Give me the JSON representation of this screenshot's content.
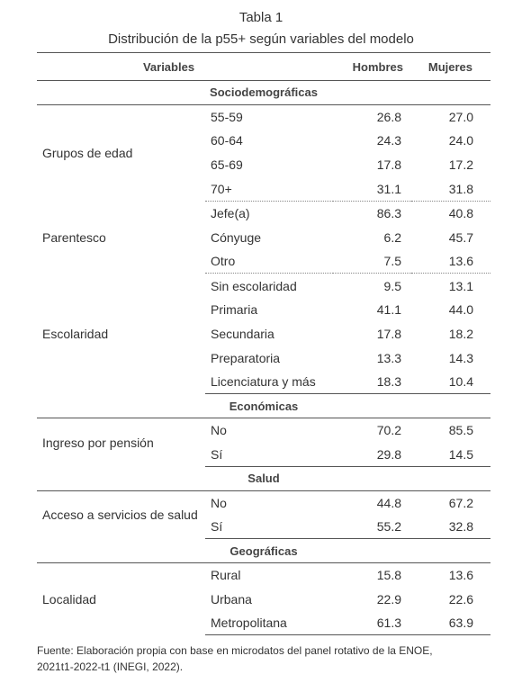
{
  "title_line1": "Tabla 1",
  "title_line2": "Distribución de la p55+ según variables del modelo",
  "headers": {
    "variables": "Variables",
    "hombres": "Hombres",
    "mujeres": "Mujeres"
  },
  "sections": [
    {
      "name": "Sociodemográficas",
      "groups": [
        {
          "variable": "Grupos de edad",
          "rows": [
            {
              "cat": "55-59",
              "h": "26.8",
              "m": "27.0"
            },
            {
              "cat": "60-64",
              "h": "24.3",
              "m": "24.0"
            },
            {
              "cat": "65-69",
              "h": "17.8",
              "m": "17.2"
            },
            {
              "cat": "70+",
              "h": "31.1",
              "m": "31.8"
            }
          ]
        },
        {
          "variable": "Parentesco",
          "rows": [
            {
              "cat": "Jefe(a)",
              "h": "86.3",
              "m": "40.8"
            },
            {
              "cat": "Cónyuge",
              "h": "6.2",
              "m": "45.7"
            },
            {
              "cat": "Otro",
              "h": "7.5",
              "m": "13.6"
            }
          ]
        },
        {
          "variable": "Escolaridad",
          "rows": [
            {
              "cat": "Sin escolaridad",
              "h": "9.5",
              "m": "13.1"
            },
            {
              "cat": "Primaria",
              "h": "41.1",
              "m": "44.0"
            },
            {
              "cat": "Secundaria",
              "h": "17.8",
              "m": "18.2"
            },
            {
              "cat": "Preparatoria",
              "h": "13.3",
              "m": "14.3"
            },
            {
              "cat": "Licenciatura y más",
              "h": "18.3",
              "m": "10.4"
            }
          ]
        }
      ]
    },
    {
      "name": "Económicas",
      "groups": [
        {
          "variable": "Ingreso por pensión",
          "rows": [
            {
              "cat": "No",
              "h": "70.2",
              "m": "85.5"
            },
            {
              "cat": "Sí",
              "h": "29.8",
              "m": "14.5"
            }
          ]
        }
      ]
    },
    {
      "name": "Salud",
      "groups": [
        {
          "variable": "Acceso a servicios de salud",
          "rows": [
            {
              "cat": "No",
              "h": "44.8",
              "m": "67.2"
            },
            {
              "cat": "Sí",
              "h": "55.2",
              "m": "32.8"
            }
          ]
        }
      ]
    },
    {
      "name": "Geográficas",
      "groups": [
        {
          "variable": "Localidad",
          "rows": [
            {
              "cat": "Rural",
              "h": "15.8",
              "m": "13.6"
            },
            {
              "cat": "Urbana",
              "h": "22.9",
              "m": "22.6"
            },
            {
              "cat": "Metropolitana",
              "h": "61.3",
              "m": "63.9"
            }
          ]
        }
      ]
    }
  ],
  "source_line1": "Fuente: Elaboración propia con base en microdatos del panel rotativo de la ENOE,",
  "source_line2": "2021t1-2022-t1 (INEGI, 2022)."
}
